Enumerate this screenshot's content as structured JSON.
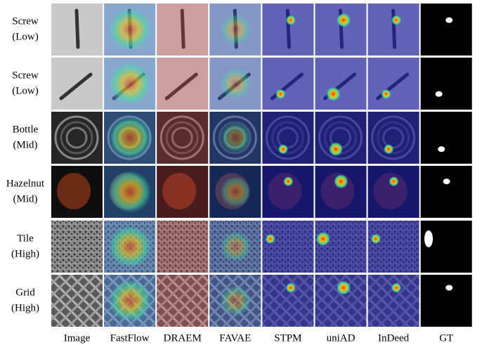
{
  "rows": [
    {
      "label": [
        "Screw",
        "(Low)"
      ]
    },
    {
      "label": [
        "Screw",
        "(Low)"
      ]
    },
    {
      "label": [
        "Bottle",
        "(Mid)"
      ]
    },
    {
      "label": [
        "Hazelnut",
        "(Mid)"
      ]
    },
    {
      "label": [
        "Tile",
        "(High)"
      ]
    },
    {
      "label": [
        "Grid",
        "(High)"
      ]
    }
  ],
  "columns": [
    "Image",
    "FastFlow",
    "DRAEM",
    "FAVAE",
    "STPM",
    "uniAD",
    "InDeed",
    "GT"
  ]
}
